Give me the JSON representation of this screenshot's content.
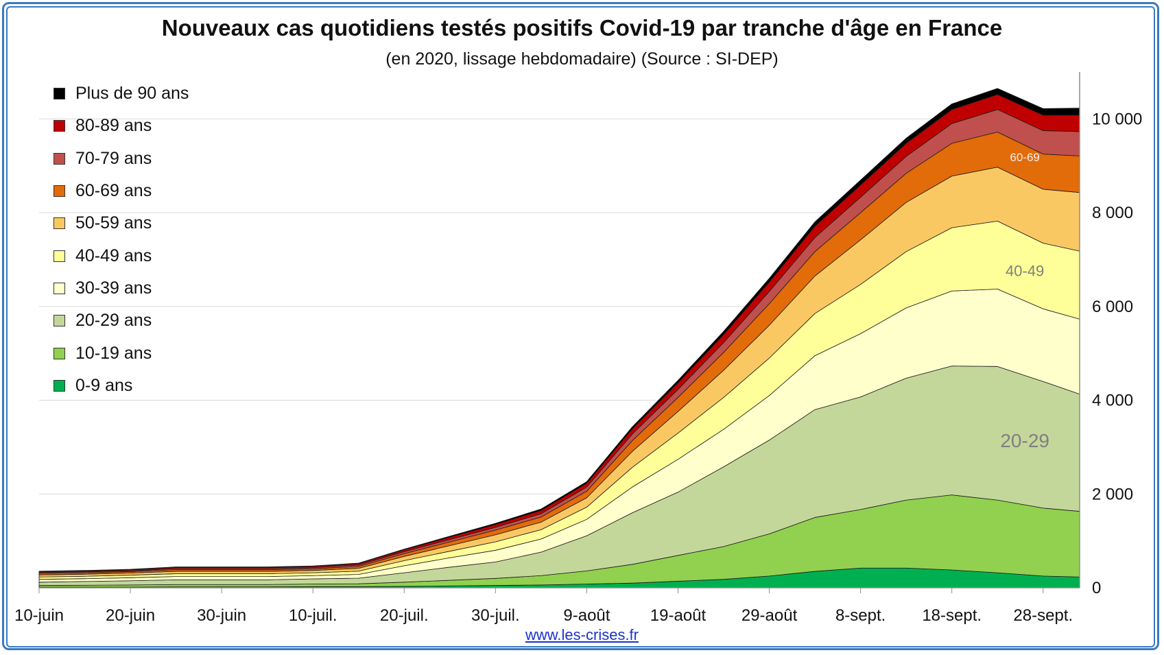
{
  "chart_data": {
    "type": "area",
    "stacked": true,
    "title": "Nouveaux cas quotidiens testés positifs Covid-19 par tranche d'âge en France",
    "subtitle": "(en 2020, lissage hebdomadaire) (Source : SI-DEP)",
    "source_url": "www.les-crises.fr",
    "x": [
      "2020-06-10",
      "2020-06-15",
      "2020-06-20",
      "2020-06-25",
      "2020-06-30",
      "2020-07-05",
      "2020-07-10",
      "2020-07-15",
      "2020-07-20",
      "2020-07-25",
      "2020-07-30",
      "2020-08-04",
      "2020-08-09",
      "2020-08-14",
      "2020-08-19",
      "2020-08-24",
      "2020-08-29",
      "2020-09-03",
      "2020-09-08",
      "2020-09-13",
      "2020-09-18",
      "2020-09-23",
      "2020-09-28",
      "2020-10-02"
    ],
    "x_tick_labels": [
      "10-juin",
      "20-juin",
      "30-juin",
      "10-juil.",
      "20-juil.",
      "30-juil.",
      "9-août",
      "19-août",
      "29-août",
      "8-sept.",
      "18-sept.",
      "28-sept."
    ],
    "y_tick_labels": [
      "0",
      "2 000",
      "4 000",
      "6 000",
      "8 000",
      "10 000"
    ],
    "ylim": [
      0,
      11000
    ],
    "grid": true,
    "legend_position": "top-left",
    "series": [
      {
        "name": "0-9 ans",
        "color": "#00b050",
        "values": [
          15,
          15,
          15,
          20,
          20,
          20,
          25,
          25,
          30,
          40,
          50,
          60,
          80,
          100,
          140,
          180,
          250,
          350,
          420,
          420,
          380,
          320,
          250,
          230
        ]
      },
      {
        "name": "10-19 ans",
        "color": "#92d050",
        "values": [
          35,
          40,
          45,
          50,
          50,
          50,
          55,
          60,
          90,
          120,
          150,
          200,
          280,
          400,
          550,
          700,
          900,
          1150,
          1250,
          1450,
          1600,
          1550,
          1450,
          1400
        ]
      },
      {
        "name": "20-29 ans",
        "color": "#c4d79b",
        "values": [
          70,
          80,
          90,
          100,
          100,
          100,
          110,
          120,
          200,
          280,
          350,
          500,
          750,
          1100,
          1350,
          1700,
          2000,
          2300,
          2400,
          2600,
          2750,
          2850,
          2700,
          2500
        ]
      },
      {
        "name": "30-39 ans",
        "color": "#ffffcc",
        "values": [
          60,
          60,
          65,
          70,
          70,
          70,
          70,
          80,
          150,
          200,
          250,
          280,
          350,
          550,
          700,
          800,
          950,
          1150,
          1350,
          1500,
          1600,
          1650,
          1550,
          1600
        ]
      },
      {
        "name": "40-49 ans",
        "color": "#ffff99",
        "values": [
          50,
          50,
          55,
          60,
          60,
          60,
          60,
          70,
          110,
          140,
          180,
          200,
          260,
          420,
          560,
          680,
          800,
          900,
          1050,
          1200,
          1350,
          1450,
          1400,
          1450
        ]
      },
      {
        "name": "50-59 ans",
        "color": "#fac863",
        "values": [
          45,
          45,
          45,
          50,
          50,
          50,
          50,
          60,
          90,
          120,
          150,
          160,
          200,
          340,
          460,
          580,
          700,
          800,
          950,
          1050,
          1100,
          1150,
          1150,
          1250
        ]
      },
      {
        "name": "60-69 ans",
        "color": "#e26b0a",
        "values": [
          30,
          30,
          30,
          35,
          35,
          35,
          35,
          40,
          60,
          80,
          100,
          110,
          140,
          230,
          300,
          380,
          460,
          520,
          580,
          620,
          700,
          750,
          750,
          780
        ]
      },
      {
        "name": "70-79 ans",
        "color": "#c0504d",
        "values": [
          20,
          20,
          20,
          25,
          25,
          25,
          25,
          30,
          40,
          50,
          60,
          70,
          90,
          140,
          170,
          210,
          260,
          300,
          330,
          360,
          420,
          480,
          500,
          520
        ]
      },
      {
        "name": "80-89 ans",
        "color": "#c00000",
        "values": [
          20,
          20,
          20,
          25,
          25,
          25,
          25,
          30,
          40,
          50,
          60,
          70,
          80,
          110,
          140,
          170,
          200,
          240,
          260,
          280,
          300,
          320,
          330,
          350
        ]
      },
      {
        "name": "Plus de 90 ans",
        "color": "#000000",
        "values": [
          10,
          10,
          10,
          10,
          10,
          10,
          10,
          12,
          15,
          20,
          25,
          30,
          35,
          45,
          55,
          70,
          80,
          95,
          105,
          110,
          120,
          130,
          140,
          150
        ]
      }
    ],
    "annotations": [
      {
        "text": "60-69",
        "x": "2020-09-26",
        "y": 9100
      },
      {
        "text": "40-49",
        "x": "2020-09-26",
        "y": 6650
      },
      {
        "text": "20-29",
        "x": "2020-09-26",
        "y": 3000
      }
    ]
  }
}
